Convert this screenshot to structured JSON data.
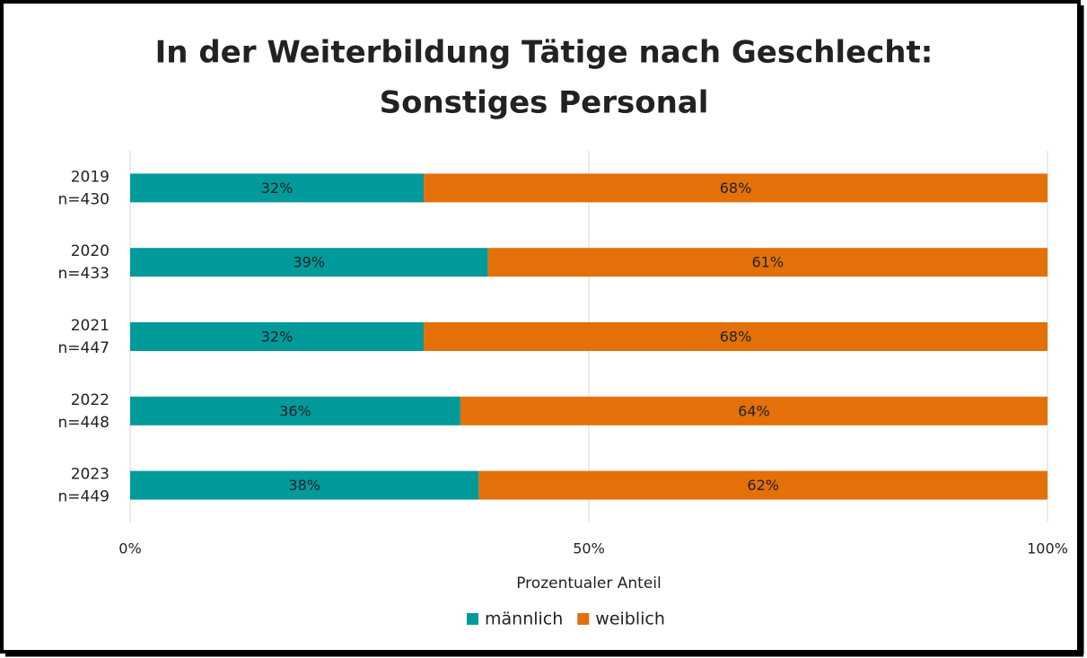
{
  "chart_data": {
    "type": "stacked-bar-horizontal",
    "title": [
      "In der Weiterbildung Tätige nach Geschlecht:",
      "Sonstiges Personal"
    ],
    "categories": [
      [
        "2019",
        "n=430"
      ],
      [
        "2020",
        "n=433"
      ],
      [
        "2021",
        "n=447"
      ],
      [
        "2022",
        "n=448"
      ],
      [
        "2023",
        "n=449"
      ]
    ],
    "series": [
      {
        "name": "männlich",
        "color": "#009a9a",
        "values": [
          32,
          39,
          32,
          36,
          38
        ],
        "value_labels": [
          "32%",
          "39%",
          "32%",
          "36%",
          "38%"
        ]
      },
      {
        "name": "weiblich",
        "color": "#e4700a",
        "values": [
          68,
          61,
          68,
          64,
          62
        ],
        "value_labels": [
          "68%",
          "61%",
          "68%",
          "64%",
          "62%"
        ]
      }
    ],
    "xlabel": "Prozentualer Anteil",
    "xlim": [
      0,
      100
    ],
    "xticks": [
      {
        "value": 0,
        "label": "0%"
      },
      {
        "value": 50,
        "label": "50%"
      },
      {
        "value": 100,
        "label": "100%"
      }
    ],
    "grid": true,
    "legend": "bottom"
  }
}
